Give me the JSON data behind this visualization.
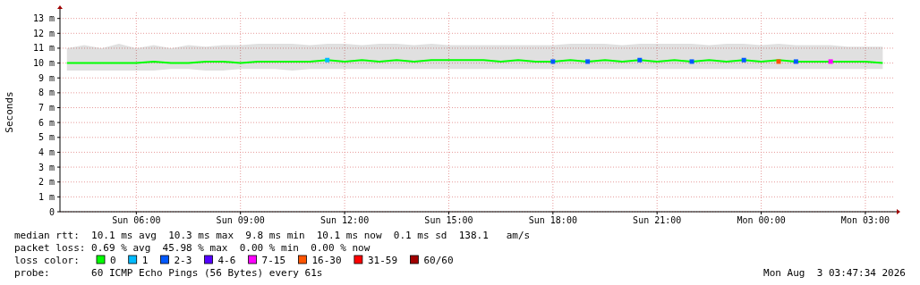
{
  "chart_data": {
    "type": "line",
    "ylabel": "Seconds",
    "legend_title": "loss color:",
    "legend": "bottom",
    "grid": true,
    "marker": "none",
    "line_style": "solid",
    "xlim": [
      "2026-08-02T03:48",
      "2026-08-03T03:48"
    ],
    "xticks": [
      {
        "value": "2026-08-02T06:00",
        "label": "Sun 06:00"
      },
      {
        "value": "2026-08-02T09:00",
        "label": "Sun 09:00"
      },
      {
        "value": "2026-08-02T12:00",
        "label": "Sun 12:00"
      },
      {
        "value": "2026-08-02T15:00",
        "label": "Sun 15:00"
      },
      {
        "value": "2026-08-02T18:00",
        "label": "Sun 18:00"
      },
      {
        "value": "2026-08-02T21:00",
        "label": "Sun 21:00"
      },
      {
        "value": "2026-08-03T00:00",
        "label": "Mon 00:00"
      },
      {
        "value": "2026-08-03T03:00",
        "label": "Mon 03:00"
      }
    ],
    "ylim": [
      0,
      13.4
    ],
    "yticks": [
      0,
      {
        "value": 1,
        "label": "1 m"
      },
      {
        "value": 2,
        "label": "2 m"
      },
      {
        "value": 3,
        "label": "3 m"
      },
      {
        "value": 4,
        "label": "4 m"
      },
      {
        "value": 5,
        "label": "5 m"
      },
      {
        "value": 6,
        "label": "6 m"
      },
      {
        "value": 7,
        "label": "7 m"
      },
      {
        "value": 8,
        "label": "8 m"
      },
      {
        "value": 9,
        "label": "9 m"
      },
      {
        "value": 10,
        "label": "10 m"
      },
      {
        "value": 11,
        "label": "11 m"
      },
      {
        "value": 12,
        "label": "12 m"
      },
      {
        "value": 13,
        "label": "13 m"
      }
    ],
    "x": [
      "2026-08-02T04:00",
      "2026-08-02T04:30",
      "2026-08-02T05:00",
      "2026-08-02T05:30",
      "2026-08-02T06:00",
      "2026-08-02T06:30",
      "2026-08-02T07:00",
      "2026-08-02T07:30",
      "2026-08-02T08:00",
      "2026-08-02T08:30",
      "2026-08-02T09:00",
      "2026-08-02T09:30",
      "2026-08-02T10:00",
      "2026-08-02T10:30",
      "2026-08-02T11:00",
      "2026-08-02T11:30",
      "2026-08-02T12:00",
      "2026-08-02T12:30",
      "2026-08-02T13:00",
      "2026-08-02T13:30",
      "2026-08-02T14:00",
      "2026-08-02T14:30",
      "2026-08-02T15:00",
      "2026-08-02T15:30",
      "2026-08-02T16:00",
      "2026-08-02T16:30",
      "2026-08-02T17:00",
      "2026-08-02T17:30",
      "2026-08-02T18:00",
      "2026-08-02T18:30",
      "2026-08-02T19:00",
      "2026-08-02T19:30",
      "2026-08-02T20:00",
      "2026-08-02T20:30",
      "2026-08-02T21:00",
      "2026-08-02T21:30",
      "2026-08-02T22:00",
      "2026-08-02T22:30",
      "2026-08-02T23:00",
      "2026-08-02T23:30",
      "2026-08-03T00:00",
      "2026-08-03T00:30",
      "2026-08-03T01:00",
      "2026-08-03T01:30",
      "2026-08-03T02:00",
      "2026-08-03T02:30",
      "2026-08-03T03:00",
      "2026-08-03T03:30"
    ],
    "series": [
      {
        "name": "0",
        "color": "#00ff00",
        "values": [
          10.0,
          10.0,
          10.0,
          10.0,
          10.0,
          10.1,
          10.0,
          10.0,
          10.1,
          10.1,
          10.0,
          10.1,
          10.1,
          10.1,
          10.1,
          10.2,
          10.1,
          10.2,
          10.1,
          10.2,
          10.1,
          10.2,
          10.2,
          10.2,
          10.2,
          10.1,
          10.2,
          10.1,
          10.1,
          10.2,
          10.1,
          10.2,
          10.1,
          10.2,
          10.1,
          10.2,
          10.1,
          10.2,
          10.1,
          10.2,
          10.1,
          10.2,
          10.1,
          10.1,
          10.1,
          10.1,
          10.1,
          10.0
        ],
        "lower": [
          9.5,
          9.5,
          9.5,
          9.5,
          9.5,
          9.5,
          9.6,
          9.6,
          9.5,
          9.5,
          9.6,
          9.6,
          9.6,
          9.5,
          9.6,
          9.6,
          9.6,
          9.6,
          9.6,
          9.6,
          9.6,
          9.6,
          9.6,
          9.6,
          9.6,
          9.6,
          9.6,
          9.6,
          9.6,
          9.6,
          9.6,
          9.6,
          9.6,
          9.6,
          9.6,
          9.6,
          9.6,
          9.6,
          9.6,
          9.6,
          9.6,
          9.6,
          9.6,
          9.6,
          9.6,
          9.6,
          9.6,
          9.6
        ],
        "upper": [
          11.0,
          11.2,
          11.0,
          11.3,
          11.0,
          11.2,
          11.0,
          11.2,
          11.1,
          11.2,
          11.2,
          11.3,
          11.3,
          11.3,
          11.2,
          11.3,
          11.3,
          11.2,
          11.3,
          11.3,
          11.2,
          11.3,
          11.2,
          11.2,
          11.2,
          11.2,
          11.2,
          11.2,
          11.2,
          11.3,
          11.3,
          11.3,
          11.2,
          11.3,
          11.3,
          11.3,
          11.3,
          11.2,
          11.3,
          11.3,
          11.2,
          11.3,
          11.2,
          11.2,
          11.2,
          11.1,
          11.1,
          11.1
        ]
      },
      {
        "name": "1",
        "color": "#00bbff",
        "type": "scatter",
        "marker": "square",
        "values": [
          null,
          null,
          null,
          null,
          null,
          null,
          null,
          null,
          null,
          null,
          null,
          null,
          null,
          null,
          null,
          10.2,
          null,
          null,
          null,
          null,
          null,
          null,
          null,
          null,
          null,
          null,
          null,
          null,
          null,
          null,
          null,
          null,
          null,
          null,
          null,
          null,
          null,
          null,
          null,
          null,
          null,
          null,
          null,
          null,
          null,
          null,
          null,
          null
        ]
      },
      {
        "name": "2-3",
        "color": "#0059ff",
        "type": "scatter",
        "marker": "square",
        "values": [
          null,
          null,
          null,
          null,
          null,
          null,
          null,
          null,
          null,
          null,
          null,
          null,
          null,
          null,
          null,
          null,
          null,
          null,
          null,
          null,
          null,
          null,
          null,
          null,
          null,
          null,
          null,
          null,
          10.1,
          null,
          10.1,
          null,
          null,
          10.2,
          null,
          null,
          10.1,
          null,
          null,
          10.2,
          null,
          null,
          10.1,
          null,
          null,
          null,
          null,
          null
        ]
      },
      {
        "name": "4-6",
        "color": "#5500ff",
        "type": "scatter",
        "marker": "square",
        "values": [
          null,
          null,
          null,
          null,
          null,
          null,
          null,
          null,
          null,
          null,
          null,
          null,
          null,
          null,
          null,
          null,
          null,
          null,
          null,
          null,
          null,
          null,
          null,
          null,
          null,
          null,
          null,
          null,
          null,
          null,
          null,
          null,
          null,
          null,
          null,
          null,
          null,
          null,
          null,
          null,
          null,
          null,
          null,
          null,
          null,
          null,
          null,
          null
        ]
      },
      {
        "name": "7-15",
        "color": "#ff00ff",
        "type": "scatter",
        "marker": "square",
        "values": [
          null,
          null,
          null,
          null,
          null,
          null,
          null,
          null,
          null,
          null,
          null,
          null,
          null,
          null,
          null,
          null,
          null,
          null,
          null,
          null,
          null,
          null,
          null,
          null,
          null,
          null,
          null,
          null,
          null,
          null,
          null,
          null,
          null,
          null,
          null,
          null,
          null,
          null,
          null,
          null,
          null,
          null,
          null,
          null,
          10.1,
          null,
          null,
          null
        ]
      },
      {
        "name": "16-30",
        "color": "#ff5500",
        "type": "scatter",
        "marker": "square",
        "values": [
          null,
          null,
          null,
          null,
          null,
          null,
          null,
          null,
          null,
          null,
          null,
          null,
          null,
          null,
          null,
          null,
          null,
          null,
          null,
          null,
          null,
          null,
          null,
          null,
          null,
          null,
          null,
          null,
          null,
          null,
          null,
          null,
          null,
          null,
          null,
          null,
          null,
          null,
          null,
          null,
          null,
          10.1,
          null,
          null,
          null,
          null,
          null,
          null
        ]
      },
      {
        "name": "31-59",
        "color": "#ff0000",
        "type": "scatter",
        "marker": "square",
        "values": [
          null,
          null,
          null,
          null,
          null,
          null,
          null,
          null,
          null,
          null,
          null,
          null,
          null,
          null,
          null,
          null,
          null,
          null,
          null,
          null,
          null,
          null,
          null,
          null,
          null,
          null,
          null,
          null,
          null,
          null,
          null,
          null,
          null,
          null,
          null,
          null,
          null,
          null,
          null,
          null,
          null,
          null,
          null,
          null,
          null,
          null,
          null,
          null
        ]
      },
      {
        "name": "60/60",
        "color": "#a10000",
        "type": "scatter",
        "marker": "square",
        "values": [
          null,
          null,
          null,
          null,
          null,
          null,
          null,
          null,
          null,
          null,
          null,
          null,
          null,
          null,
          null,
          null,
          null,
          null,
          null,
          null,
          null,
          null,
          null,
          null,
          null,
          null,
          null,
          null,
          null,
          null,
          null,
          null,
          null,
          null,
          null,
          null,
          null,
          null,
          null,
          null,
          null,
          null,
          null,
          null,
          null,
          null,
          null,
          null
        ]
      }
    ],
    "annotations": [
      "median rtt:  10.1 ms avg  10.3 ms max  9.8 ms min  10.1 ms now  0.1 ms sd  138.1   am/s",
      "packet loss: 0.69 % avg  45.98 % max  0.00 % min  0.00 % now",
      "probe:       60 ICMP Echo Pings (56 Bytes) every 61s",
      "Mon Aug  3 03:47:34 2026"
    ]
  }
}
